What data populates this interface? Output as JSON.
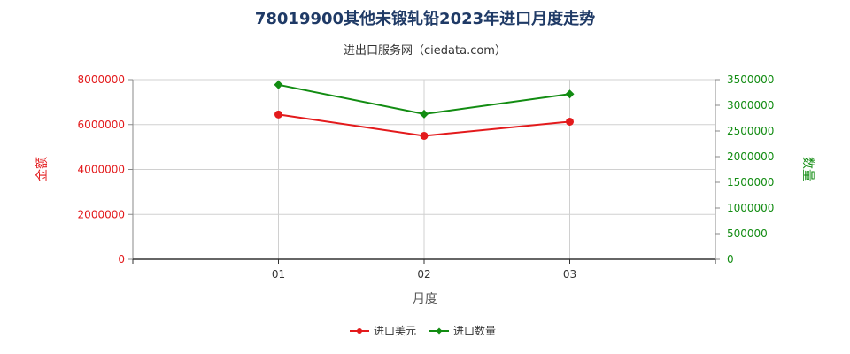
{
  "chart_data": {
    "type": "line",
    "title": "78019900其他未锻轧铅2023年进口月度走势",
    "subtitle": "进出口服务网（ciedata.com）",
    "xlabel": "月度",
    "ylabel_left": "金额",
    "ylabel_right": "数量",
    "categories": [
      "01",
      "02",
      "03"
    ],
    "ylim_left": [
      0,
      8000000
    ],
    "ylim_right": [
      0,
      3500000
    ],
    "yticks_left": [
      "0",
      "2000000",
      "4000000",
      "6000000",
      "8000000"
    ],
    "yticks_right": [
      "0",
      "500000",
      "1000000",
      "1500000",
      "2000000",
      "2500000",
      "3000000",
      "3500000"
    ],
    "grid": true,
    "legend_position": "bottom",
    "series": [
      {
        "name": "进口美元",
        "axis": "left",
        "color": "#e31a1c",
        "marker": "circle",
        "values": [
          6450000,
          5500000,
          6130000
        ]
      },
      {
        "name": "进口数量",
        "axis": "right",
        "color": "#128c12",
        "marker": "diamond",
        "values": [
          3400000,
          2830000,
          3220000
        ]
      }
    ],
    "colors": {
      "left_axis": "#e31a1c",
      "right_axis": "#128c12",
      "title": "#1f3a66",
      "grid": "#d0d0d0"
    }
  }
}
